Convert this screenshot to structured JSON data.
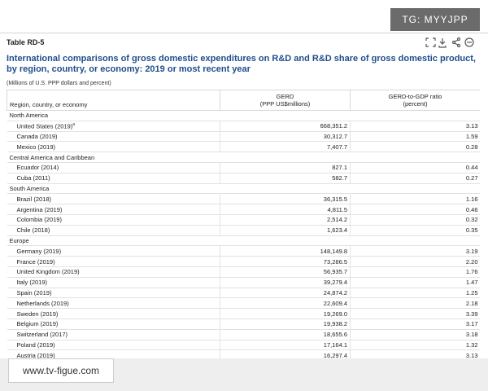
{
  "badge": "TG: MYYJPP",
  "footer_badge": "www.tv-figue.com",
  "header": {
    "table_id": "Table RD-5",
    "title": "International comparisons of gross domestic expenditures on R&D and R&D share of gross domestic product, by region, country, or economy: 2019 or most recent year",
    "units": "(Millions of U.S. PPP dollars and percent)"
  },
  "table": {
    "columns": [
      {
        "lines": [
          "Region, country, or economy"
        ]
      },
      {
        "lines": [
          "GERD",
          "(PPP US$millions)"
        ]
      },
      {
        "lines": [
          "GERD-to-GDP ratio",
          "(percent)"
        ]
      }
    ],
    "groups": [
      {
        "name": "North America",
        "rows": [
          {
            "label": "United States (2019)",
            "note": "a",
            "gerd": "668,351.2",
            "ratio": "3.13"
          },
          {
            "label": "Canada (2019)",
            "gerd": "30,312.7",
            "ratio": "1.59"
          },
          {
            "label": "Mexico (2019)",
            "gerd": "7,407.7",
            "ratio": "0.28"
          }
        ]
      },
      {
        "name": "Central America and Caribbean",
        "rows": [
          {
            "label": "Ecuador (2014)",
            "gerd": "827.1",
            "ratio": "0.44"
          },
          {
            "label": "Cuba (2011)",
            "gerd": "582.7",
            "ratio": "0.27"
          }
        ]
      },
      {
        "name": "South America",
        "rows": [
          {
            "label": "Brazil (2018)",
            "gerd": "36,315.5",
            "ratio": "1.16"
          },
          {
            "label": "Argentina (2019)",
            "gerd": "4,811.5",
            "ratio": "0.46"
          },
          {
            "label": "Colombia (2019)",
            "gerd": "2,514.2",
            "ratio": "0.32"
          },
          {
            "label": "Chile (2018)",
            "gerd": "1,623.4",
            "ratio": "0.35"
          }
        ]
      },
      {
        "name": "Europe",
        "rows": [
          {
            "label": "Germany (2019)",
            "gerd": "148,149.8",
            "ratio": "3.19"
          },
          {
            "label": "France (2019)",
            "gerd": "73,286.5",
            "ratio": "2.20"
          },
          {
            "label": "United Kingdom (2019)",
            "gerd": "56,935.7",
            "ratio": "1.76"
          },
          {
            "label": "Italy (2019)",
            "gerd": "39,279.4",
            "ratio": "1.47"
          },
          {
            "label": "Spain (2019)",
            "gerd": "24,874.2",
            "ratio": "1.25"
          },
          {
            "label": "Netherlands (2019)",
            "gerd": "22,609.4",
            "ratio": "2.18"
          },
          {
            "label": "Sweden (2019)",
            "gerd": "19,269.0",
            "ratio": "3.39"
          },
          {
            "label": "Belgium (2019)",
            "gerd": "19,938.2",
            "ratio": "3.17"
          },
          {
            "label": "Switzerland (2017)",
            "gerd": "18,655.6",
            "ratio": "3.18"
          },
          {
            "label": "Poland (2019)",
            "gerd": "17,164.1",
            "ratio": "1.32"
          },
          {
            "label": "Austria (2019)",
            "gerd": "16,297.4",
            "ratio": "3.13"
          }
        ]
      }
    ]
  }
}
